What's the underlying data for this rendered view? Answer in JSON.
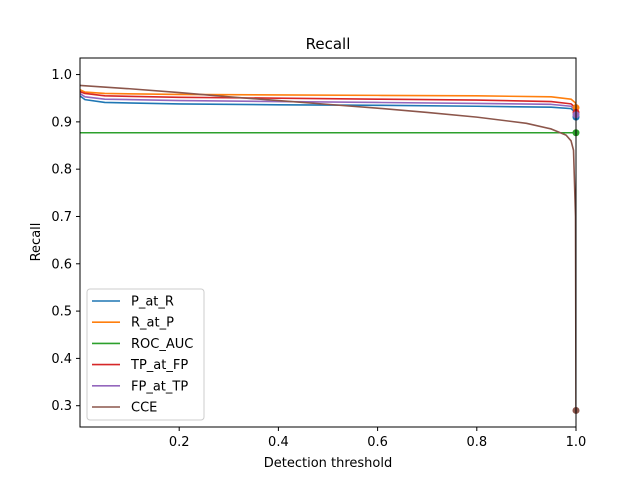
{
  "chart_data": {
    "type": "line",
    "title": "Recall",
    "xlabel": "Detection threshold",
    "ylabel": "Recall",
    "xlim": [
      0.0,
      1.0
    ],
    "ylim": [
      0.255,
      1.035
    ],
    "xticks": [
      0.2,
      0.4,
      0.6,
      0.8,
      1.0
    ],
    "xtick_labels": [
      "0.2",
      "0.4",
      "0.6",
      "0.8",
      "1.0"
    ],
    "yticks": [
      0.3,
      0.4,
      0.5,
      0.6,
      0.7,
      0.8,
      0.9,
      1.0
    ],
    "ytick_labels": [
      "0.3",
      "0.4",
      "0.5",
      "0.6",
      "0.7",
      "0.8",
      "0.9",
      "1.0"
    ],
    "grid": false,
    "legend_position": "lower-left",
    "series": [
      {
        "name": "P_at_R",
        "color": "#1f77b4",
        "points": [
          [
            0.0,
            0.955
          ],
          [
            0.01,
            0.947
          ],
          [
            0.05,
            0.941
          ],
          [
            0.2,
            0.938
          ],
          [
            0.4,
            0.936
          ],
          [
            0.6,
            0.935
          ],
          [
            0.8,
            0.933
          ],
          [
            0.95,
            0.931
          ],
          [
            0.99,
            0.928
          ],
          [
            0.999,
            0.92
          ],
          [
            1.0,
            0.91
          ]
        ],
        "end_marker": [
          1.0,
          0.91
        ]
      },
      {
        "name": "R_at_P",
        "color": "#ff7f0e",
        "points": [
          [
            0.0,
            0.968
          ],
          [
            0.01,
            0.963
          ],
          [
            0.05,
            0.96
          ],
          [
            0.2,
            0.958
          ],
          [
            0.4,
            0.957
          ],
          [
            0.6,
            0.956
          ],
          [
            0.8,
            0.955
          ],
          [
            0.95,
            0.953
          ],
          [
            0.99,
            0.948
          ],
          [
            0.999,
            0.94
          ],
          [
            1.0,
            0.93
          ]
        ],
        "end_marker": [
          1.0,
          0.93
        ]
      },
      {
        "name": "ROC_AUC",
        "color": "#2ca02c",
        "points": [
          [
            0.0,
            0.877
          ],
          [
            0.2,
            0.877
          ],
          [
            0.4,
            0.877
          ],
          [
            0.6,
            0.877
          ],
          [
            0.8,
            0.877
          ],
          [
            1.0,
            0.877
          ]
        ],
        "end_marker": [
          1.0,
          0.877
        ]
      },
      {
        "name": "TP_at_FP",
        "color": "#d62728",
        "points": [
          [
            0.0,
            0.964
          ],
          [
            0.01,
            0.96
          ],
          [
            0.05,
            0.955
          ],
          [
            0.2,
            0.952
          ],
          [
            0.4,
            0.95
          ],
          [
            0.6,
            0.948
          ],
          [
            0.8,
            0.946
          ],
          [
            0.95,
            0.943
          ],
          [
            0.99,
            0.938
          ],
          [
            0.999,
            0.93
          ],
          [
            1.0,
            0.92
          ]
        ],
        "end_marker": [
          1.0,
          0.92
        ]
      },
      {
        "name": "FP_at_TP",
        "color": "#9467bd",
        "points": [
          [
            0.0,
            0.96
          ],
          [
            0.01,
            0.953
          ],
          [
            0.05,
            0.948
          ],
          [
            0.2,
            0.945
          ],
          [
            0.4,
            0.943
          ],
          [
            0.6,
            0.941
          ],
          [
            0.8,
            0.939
          ],
          [
            0.95,
            0.937
          ],
          [
            0.99,
            0.933
          ],
          [
            0.999,
            0.925
          ],
          [
            1.0,
            0.915
          ]
        ],
        "end_marker": [
          1.0,
          0.915
        ]
      },
      {
        "name": "CCE",
        "color": "#8c564b",
        "points": [
          [
            0.0,
            0.977
          ],
          [
            0.1,
            0.97
          ],
          [
            0.2,
            0.962
          ],
          [
            0.3,
            0.953
          ],
          [
            0.4,
            0.945
          ],
          [
            0.5,
            0.937
          ],
          [
            0.6,
            0.929
          ],
          [
            0.7,
            0.92
          ],
          [
            0.8,
            0.91
          ],
          [
            0.9,
            0.897
          ],
          [
            0.95,
            0.885
          ],
          [
            0.98,
            0.872
          ],
          [
            0.99,
            0.86
          ],
          [
            0.995,
            0.84
          ],
          [
            0.999,
            0.7
          ],
          [
            1.0,
            0.29
          ]
        ],
        "end_marker": [
          1.0,
          0.29
        ]
      }
    ]
  }
}
